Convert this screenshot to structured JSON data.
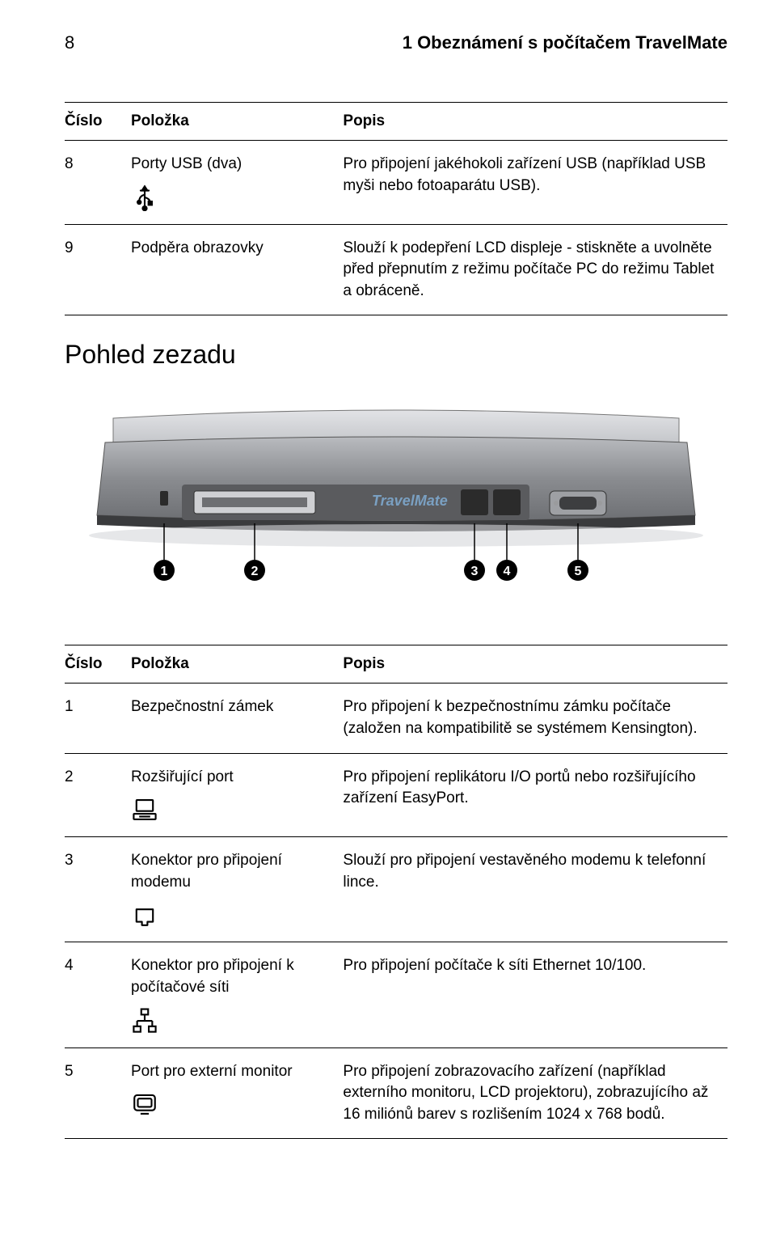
{
  "header": {
    "page_number": "8",
    "chapter_title": "1 Obeznámení s počítačem TravelMate"
  },
  "table1": {
    "header": {
      "num": "Číslo",
      "item": "Položka",
      "desc": "Popis"
    },
    "rows": [
      {
        "num": "8",
        "item": "Porty USB (dva)",
        "desc": "Pro připojení jakéhokoli zařízení USB (například USB myši nebo fotoaparátu USB).",
        "icon": "usb"
      },
      {
        "num": "9",
        "item": "Podpěra obrazovky",
        "desc": "Slouží k podepření LCD displeje - stiskněte a uvolněte před přepnutím z režimu počítače PC do režimu Tablet a obráceně.",
        "icon": null
      }
    ]
  },
  "section2_title": "Pohled zezadu",
  "illustration": {
    "body_color": "#8a8c90",
    "lid_color": "#c5c7cb",
    "shadow_color": "#3a3b3d",
    "port_dark": "#2b2b2b",
    "screw_color": "#9a9b9d",
    "callouts": [
      "1",
      "2",
      "3",
      "4",
      "5"
    ],
    "label_text": "TravelMate",
    "label_color": "#7aa0c2"
  },
  "table2": {
    "header": {
      "num": "Číslo",
      "item": "Položka",
      "desc": "Popis"
    },
    "rows": [
      {
        "num": "1",
        "item": "Bezpečnostní zámek",
        "desc": "Pro připojení k bezpečnostnímu zámku počítače (založen na kompatibilitě se systémem Kensington).",
        "icon": null
      },
      {
        "num": "2",
        "item": "Rozšiřující port",
        "desc": "Pro připojení replikátoru I/O portů nebo rozšiřujícího zařízení EasyPort.",
        "icon": "dock"
      },
      {
        "num": "3",
        "item": "Konektor pro připojení modemu",
        "desc": "Slouží pro připojení vestavěného modemu k telefonní lince.",
        "icon": "modem"
      },
      {
        "num": "4",
        "item": "Konektor pro připojení k počítačové síti",
        "desc": "Pro připojení počítače k síti Ethernet 10/100.",
        "icon": "ethernet"
      },
      {
        "num": "5",
        "item": "Port pro externí monitor",
        "desc": "Pro připojení zobrazovacího zařízení (například externího monitoru, LCD projektoru), zobrazujícího až 16 miliónů barev s rozlišením 1024 x 768 bodů.",
        "icon": "monitor"
      }
    ]
  },
  "icons": {
    "stroke": "#000000",
    "size": 34
  }
}
